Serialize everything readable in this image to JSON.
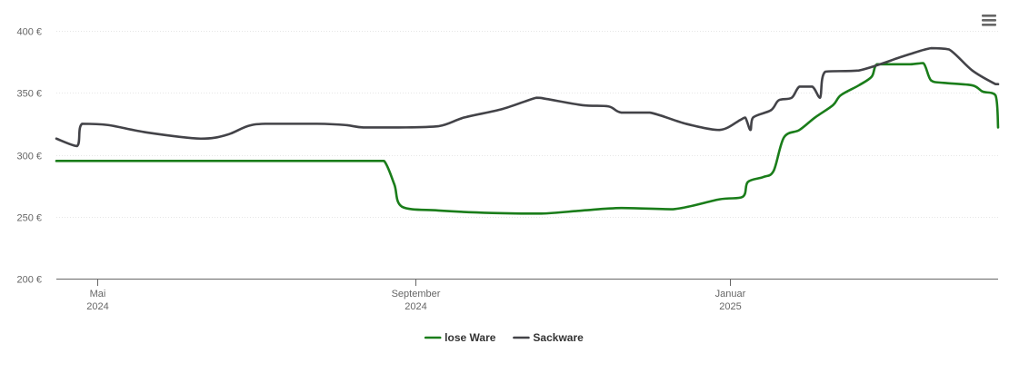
{
  "chart_data": {
    "type": "line",
    "title": "",
    "xlabel": "",
    "ylabel": "",
    "ylim": [
      200,
      400
    ],
    "y_ticks": [
      {
        "value": 400,
        "label": "400 €"
      },
      {
        "value": 350,
        "label": "350 €"
      },
      {
        "value": 300,
        "label": "300 €"
      },
      {
        "value": 250,
        "label": "250 €"
      },
      {
        "value": 200,
        "label": "200 €"
      }
    ],
    "xlim": [
      "2024-04-15",
      "2025-04-15"
    ],
    "x_ticks": [
      {
        "date": "2024-05-01",
        "label": [
          "Mai",
          "2024"
        ]
      },
      {
        "date": "2024-09-01",
        "label": [
          "September",
          "2024"
        ]
      },
      {
        "date": "2025-01-01",
        "label": [
          "Januar",
          "2025"
        ]
      }
    ],
    "grid": "horizontal",
    "legend_position": "bottom-center",
    "series": [
      {
        "name": "lose Ware",
        "color": "#1a7d1a",
        "points": [
          [
            "2024-04-15",
            295
          ],
          [
            "2024-05-15",
            295
          ],
          [
            "2024-06-15",
            295
          ],
          [
            "2024-07-15",
            295
          ],
          [
            "2024-08-15",
            295
          ],
          [
            "2024-08-20",
            295
          ],
          [
            "2024-08-24",
            276
          ],
          [
            "2024-08-27",
            258
          ],
          [
            "2024-09-10",
            255
          ],
          [
            "2024-10-01",
            253
          ],
          [
            "2024-10-20",
            252.5
          ],
          [
            "2024-11-05",
            255
          ],
          [
            "2024-11-20",
            257
          ],
          [
            "2024-12-10",
            256
          ],
          [
            "2024-12-28",
            264
          ],
          [
            "2025-01-06",
            266
          ],
          [
            "2025-01-08",
            278
          ],
          [
            "2025-01-14",
            282
          ],
          [
            "2025-01-18",
            287
          ],
          [
            "2025-01-22",
            314
          ],
          [
            "2025-01-28",
            320
          ],
          [
            "2025-02-03",
            330
          ],
          [
            "2025-02-10",
            340
          ],
          [
            "2025-02-13",
            348
          ],
          [
            "2025-02-20",
            356
          ],
          [
            "2025-02-25",
            363
          ],
          [
            "2025-02-27",
            373
          ],
          [
            "2025-03-05",
            373
          ],
          [
            "2025-03-12",
            373
          ],
          [
            "2025-03-17",
            374
          ],
          [
            "2025-03-20",
            360
          ],
          [
            "2025-03-25",
            358
          ],
          [
            "2025-04-05",
            356
          ],
          [
            "2025-04-09",
            351
          ],
          [
            "2025-04-14",
            348
          ],
          [
            "2025-04-15",
            322
          ]
        ]
      },
      {
        "name": "Sackware",
        "color": "#434348",
        "points": [
          [
            "2024-04-15",
            313
          ],
          [
            "2024-04-23",
            307
          ],
          [
            "2024-04-25",
            325
          ],
          [
            "2024-05-05",
            324
          ],
          [
            "2024-05-20",
            318
          ],
          [
            "2024-06-10",
            313
          ],
          [
            "2024-06-20",
            316
          ],
          [
            "2024-06-28",
            323
          ],
          [
            "2024-07-05",
            325
          ],
          [
            "2024-07-25",
            325
          ],
          [
            "2024-08-05",
            324
          ],
          [
            "2024-08-12",
            322
          ],
          [
            "2024-08-25",
            322
          ],
          [
            "2024-09-10",
            323
          ],
          [
            "2024-09-20",
            330
          ],
          [
            "2024-10-05",
            337
          ],
          [
            "2024-10-18",
            346
          ],
          [
            "2024-10-22",
            345
          ],
          [
            "2024-11-05",
            340
          ],
          [
            "2024-11-15",
            339
          ],
          [
            "2024-11-20",
            334
          ],
          [
            "2024-12-01",
            334
          ],
          [
            "2024-12-15",
            325
          ],
          [
            "2024-12-28",
            320
          ],
          [
            "2025-01-05",
            328
          ],
          [
            "2025-01-07",
            330
          ],
          [
            "2025-01-09",
            320
          ],
          [
            "2025-01-10",
            330
          ],
          [
            "2025-01-17",
            336
          ],
          [
            "2025-01-20",
            344
          ],
          [
            "2025-01-25",
            346
          ],
          [
            "2025-01-28",
            355
          ],
          [
            "2025-02-02",
            355
          ],
          [
            "2025-02-05",
            346
          ],
          [
            "2025-02-07",
            367
          ],
          [
            "2025-02-20",
            368
          ],
          [
            "2025-03-10",
            380
          ],
          [
            "2025-03-20",
            386
          ],
          [
            "2025-03-27",
            385
          ],
          [
            "2025-04-05",
            368
          ],
          [
            "2025-04-14",
            357
          ],
          [
            "2025-04-15",
            357
          ]
        ]
      }
    ]
  },
  "menu": {
    "icon": "hamburger-menu-icon"
  }
}
